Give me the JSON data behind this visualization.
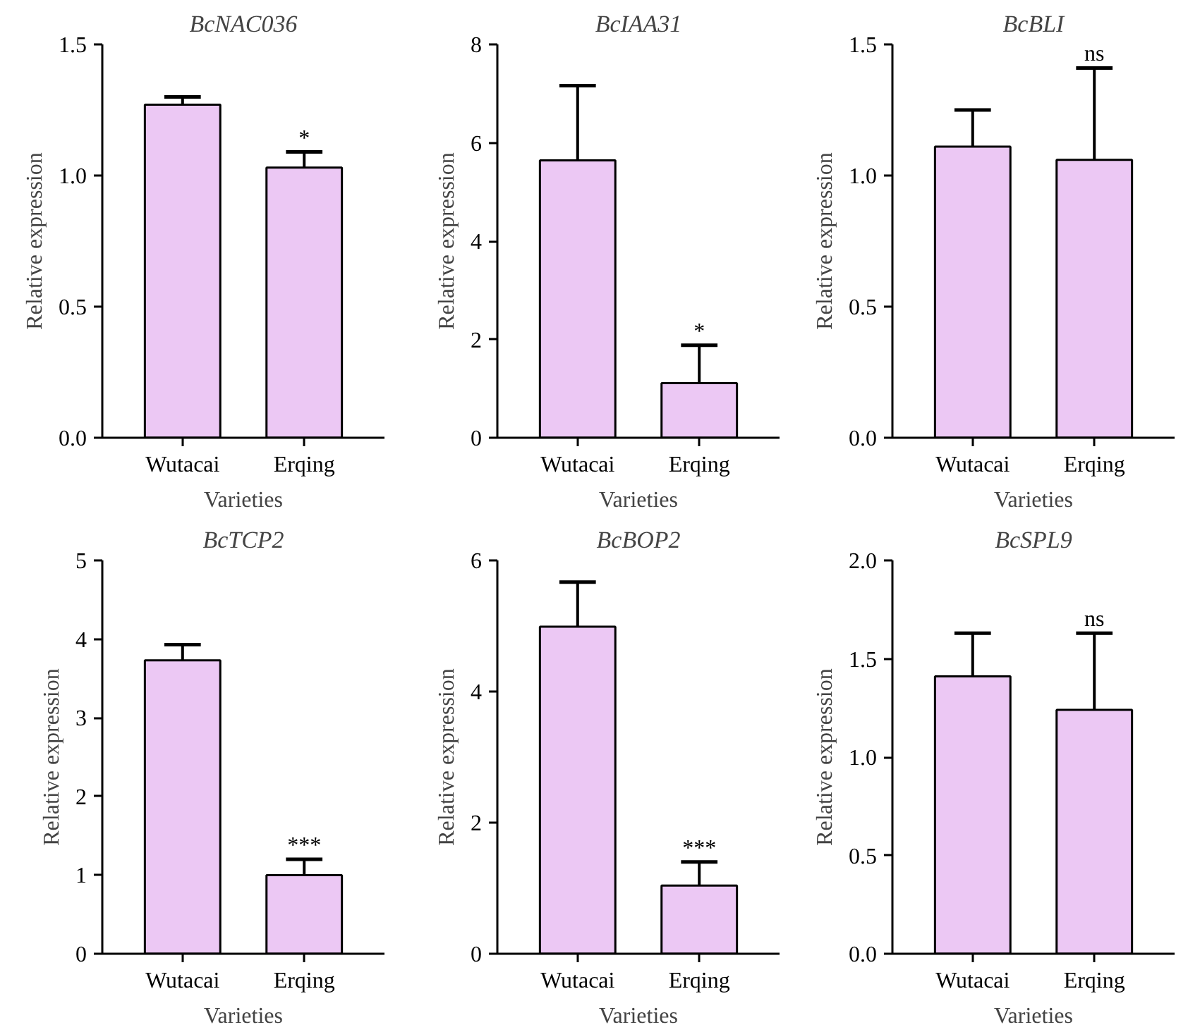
{
  "chart_data": [
    {
      "type": "bar",
      "title": "BcNAC036",
      "xlabel": "Varieties",
      "ylabel": "Relative expression",
      "categories": [
        "Wutacai",
        "Erqing"
      ],
      "values": [
        1.27,
        1.03
      ],
      "errors": [
        [
          1.27,
          1.3
        ],
        [
          1.03,
          1.09
        ]
      ],
      "color": "#ecc8f4",
      "ylim": [
        0,
        1.5
      ],
      "yticks": [
        {
          "value": 0,
          "label": "0.0"
        },
        0.5,
        {
          "value": 1,
          "label": "1.0"
        },
        1.5
      ],
      "grid": false,
      "annotations": [
        {
          "text": "*",
          "x": "Erqing",
          "y": 1.09
        }
      ]
    },
    {
      "type": "bar",
      "title": "BcIAA31",
      "xlabel": "Varieties",
      "ylabel": "Relative expression",
      "categories": [
        "Wutacai",
        "Erqing"
      ],
      "values": [
        5.64,
        1.11
      ],
      "errors": [
        [
          5.64,
          7.16
        ],
        [
          1.11,
          1.88
        ]
      ],
      "color": "#ecc8f4",
      "ylim": [
        0,
        8
      ],
      "yticks": [
        0,
        2,
        4,
        6,
        8
      ],
      "grid": false,
      "annotations": [
        {
          "text": "*",
          "x": "Erqing",
          "y": 1.88
        }
      ]
    },
    {
      "type": "bar",
      "title": "BcBLI",
      "xlabel": "Varieties",
      "ylabel": "Relative expression",
      "categories": [
        "Wutacai",
        "Erqing"
      ],
      "values": [
        1.11,
        1.06
      ],
      "errors": [
        [
          1.11,
          1.25
        ],
        [
          1.06,
          1.41
        ]
      ],
      "color": "#ecc8f4",
      "ylim": [
        0,
        1.5
      ],
      "yticks": [
        {
          "value": 0,
          "label": "0.0"
        },
        0.5,
        {
          "value": 1,
          "label": "1.0"
        },
        1.5
      ],
      "grid": false,
      "annotations": [
        {
          "text": "ns",
          "x": "Erqing",
          "y": 1.41
        }
      ]
    },
    {
      "type": "bar",
      "title": "BcTCP2",
      "xlabel": "Varieties",
      "ylabel": "Relative expression",
      "categories": [
        "Wutacai",
        "Erqing"
      ],
      "values": [
        3.73,
        1.0
      ],
      "errors": [
        [
          3.73,
          3.93
        ],
        [
          1.0,
          1.2
        ]
      ],
      "color": "#ecc8f4",
      "ylim": [
        0,
        5
      ],
      "yticks": [
        0,
        1,
        2,
        3,
        4,
        5
      ],
      "grid": false,
      "annotations": [
        {
          "text": "***",
          "x": "Erqing",
          "y": 1.2
        }
      ]
    },
    {
      "type": "bar",
      "title": "BcBOP2",
      "xlabel": "Varieties",
      "ylabel": "Relative expression",
      "categories": [
        "Wutacai",
        "Erqing"
      ],
      "values": [
        4.99,
        1.04
      ],
      "errors": [
        [
          4.99,
          5.67
        ],
        [
          1.04,
          1.4
        ]
      ],
      "color": "#ecc8f4",
      "ylim": [
        0,
        6
      ],
      "yticks": [
        0,
        2,
        4,
        6
      ],
      "grid": false,
      "annotations": [
        {
          "text": "***",
          "x": "Erqing",
          "y": 1.4
        }
      ]
    },
    {
      "type": "bar",
      "title": "BcSPL9",
      "xlabel": "Varieties",
      "ylabel": "Relative expression",
      "categories": [
        "Wutacai",
        "Erqing"
      ],
      "values": [
        1.41,
        1.24
      ],
      "errors": [
        [
          1.41,
          1.63
        ],
        [
          1.24,
          1.63
        ]
      ],
      "color": "#ecc8f4",
      "ylim": [
        0,
        2
      ],
      "yticks": [
        {
          "value": 0,
          "label": "0.0"
        },
        0.5,
        {
          "value": 1,
          "label": "1.0"
        },
        1.5,
        {
          "value": 2,
          "label": "2.0"
        }
      ],
      "grid": false,
      "annotations": [
        {
          "text": "ns",
          "x": "Erqing",
          "y": 1.63
        }
      ]
    }
  ]
}
